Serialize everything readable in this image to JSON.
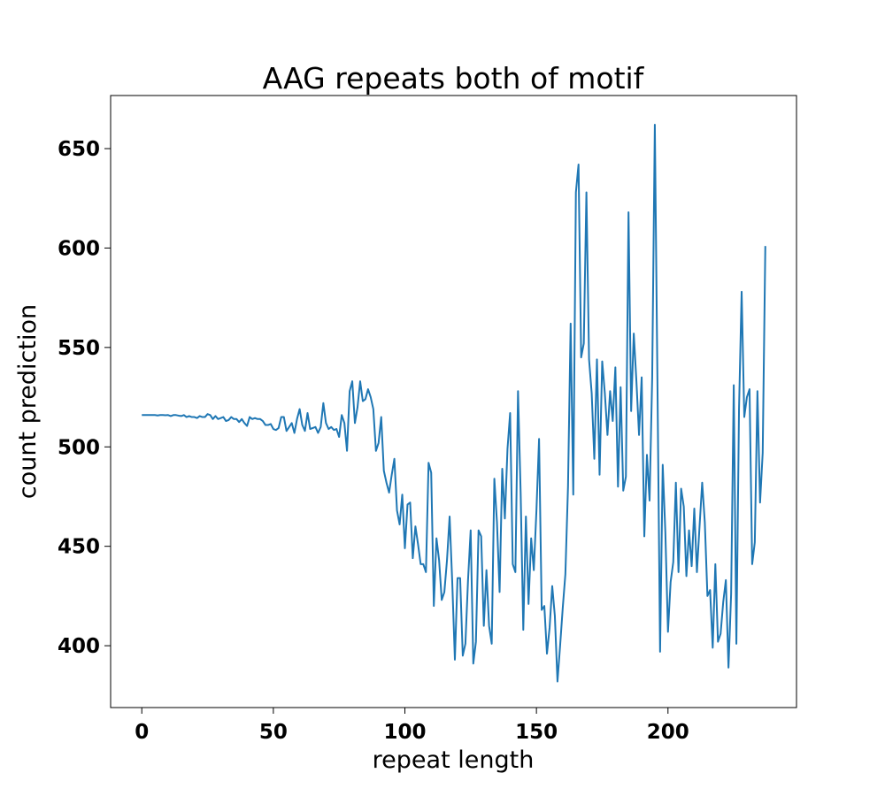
{
  "chart_data": {
    "type": "line",
    "title": "AAG repeats both of motif",
    "xlabel": "repeat length",
    "ylabel": "count prediction",
    "x": [
      0,
      1,
      2,
      3,
      4,
      5,
      6,
      7,
      8,
      9,
      10,
      11,
      12,
      13,
      14,
      15,
      16,
      17,
      18,
      19,
      20,
      21,
      22,
      23,
      24,
      25,
      26,
      27,
      28,
      29,
      30,
      31,
      32,
      33,
      34,
      35,
      36,
      37,
      38,
      39,
      40,
      41,
      42,
      43,
      44,
      45,
      46,
      47,
      48,
      49,
      50,
      51,
      52,
      53,
      54,
      55,
      56,
      57,
      58,
      59,
      60,
      61,
      62,
      63,
      64,
      65,
      66,
      67,
      68,
      69,
      70,
      71,
      72,
      73,
      74,
      75,
      76,
      77,
      78,
      79,
      80,
      81,
      82,
      83,
      84,
      85,
      86,
      87,
      88,
      89,
      90,
      91,
      92,
      93,
      94,
      95,
      96,
      97,
      98,
      99,
      100,
      101,
      102,
      103,
      104,
      105,
      106,
      107,
      108,
      109,
      110,
      111,
      112,
      113,
      114,
      115,
      116,
      117,
      118,
      119,
      120,
      121,
      122,
      123,
      124,
      125,
      126,
      127,
      128,
      129,
      130,
      131,
      132,
      133,
      134,
      135,
      136,
      137,
      138,
      139,
      140,
      141,
      142,
      143,
      144,
      145,
      146,
      147,
      148,
      149,
      150,
      151,
      152,
      153,
      154,
      155,
      156,
      157,
      158,
      159,
      160,
      161,
      162,
      163,
      164,
      165,
      166,
      167,
      168,
      169,
      170,
      171,
      172,
      173,
      174,
      175,
      176,
      177,
      178,
      179,
      180,
      181,
      182,
      183,
      184,
      185,
      186,
      187,
      188,
      189,
      190,
      191,
      192,
      193,
      194,
      195,
      196,
      197,
      198,
      199,
      200,
      201,
      202,
      203,
      204,
      205,
      206,
      207,
      208,
      209,
      210,
      211,
      212,
      213,
      214,
      215,
      216,
      217,
      218,
      219,
      220,
      221,
      222,
      223,
      224,
      225,
      226,
      227,
      228,
      229,
      230,
      231,
      232,
      233,
      234,
      235,
      236,
      237
    ],
    "series": [
      {
        "color": "#1f77b4",
        "values": [
          516,
          516,
          516,
          516,
          516,
          516,
          515.8,
          516,
          516,
          515.9,
          516,
          515.5,
          516,
          516,
          515.7,
          515.5,
          516,
          515,
          515.5,
          515,
          515,
          514.5,
          515.5,
          515,
          515,
          516.5,
          516,
          514,
          515.5,
          514,
          514.5,
          515,
          513,
          513.5,
          515,
          514,
          514,
          512.5,
          514,
          512,
          510.5,
          515,
          514,
          514.5,
          514,
          514,
          513,
          511,
          511,
          511.5,
          509,
          508.5,
          509.5,
          515,
          515,
          508,
          510,
          512,
          507,
          514,
          519,
          511,
          508,
          517,
          509,
          509.5,
          510,
          507,
          510,
          522,
          512,
          509,
          510,
          508.5,
          509,
          505,
          516,
          512,
          498,
          528,
          533,
          512,
          520,
          533,
          523,
          524,
          529,
          525,
          519,
          498,
          502,
          515,
          488,
          482,
          477,
          486,
          494,
          468,
          461,
          476,
          449,
          471,
          472,
          444,
          460,
          451,
          441,
          441,
          437,
          492,
          487,
          420,
          454,
          443,
          423,
          427,
          443,
          465,
          432,
          393,
          434,
          434,
          395,
          401,
          433,
          458,
          391,
          402,
          458,
          455,
          410,
          438,
          410,
          401,
          484,
          462,
          427,
          489,
          464,
          499,
          517,
          441,
          437,
          528,
          477,
          408,
          465,
          421,
          454,
          438,
          468,
          504,
          418,
          420,
          396,
          409,
          430,
          415,
          382,
          400,
          419,
          436,
          480,
          562,
          476,
          628,
          642,
          545,
          552,
          628,
          544,
          527,
          494,
          544,
          486,
          543,
          527,
          506,
          528,
          513,
          540,
          480,
          530,
          478,
          485,
          618,
          518,
          557,
          533,
          506,
          535,
          455,
          496,
          473,
          535,
          662,
          532,
          397,
          491,
          457,
          407,
          432,
          442,
          482,
          437,
          479,
          470,
          435,
          458,
          440,
          469,
          437,
          460,
          482,
          462,
          425,
          428,
          399,
          441,
          402,
          406,
          422,
          433,
          389,
          426,
          531,
          401,
          519,
          578,
          515,
          525,
          529,
          441,
          452,
          528,
          472,
          497,
          601
        ]
      }
    ],
    "xlim": [
      -11.85,
      248.85
    ],
    "ylim": [
      368.9,
      676.7
    ],
    "xticks": [
      0,
      50,
      100,
      150,
      200
    ],
    "yticks": [
      400,
      450,
      500,
      550,
      600,
      650
    ]
  }
}
